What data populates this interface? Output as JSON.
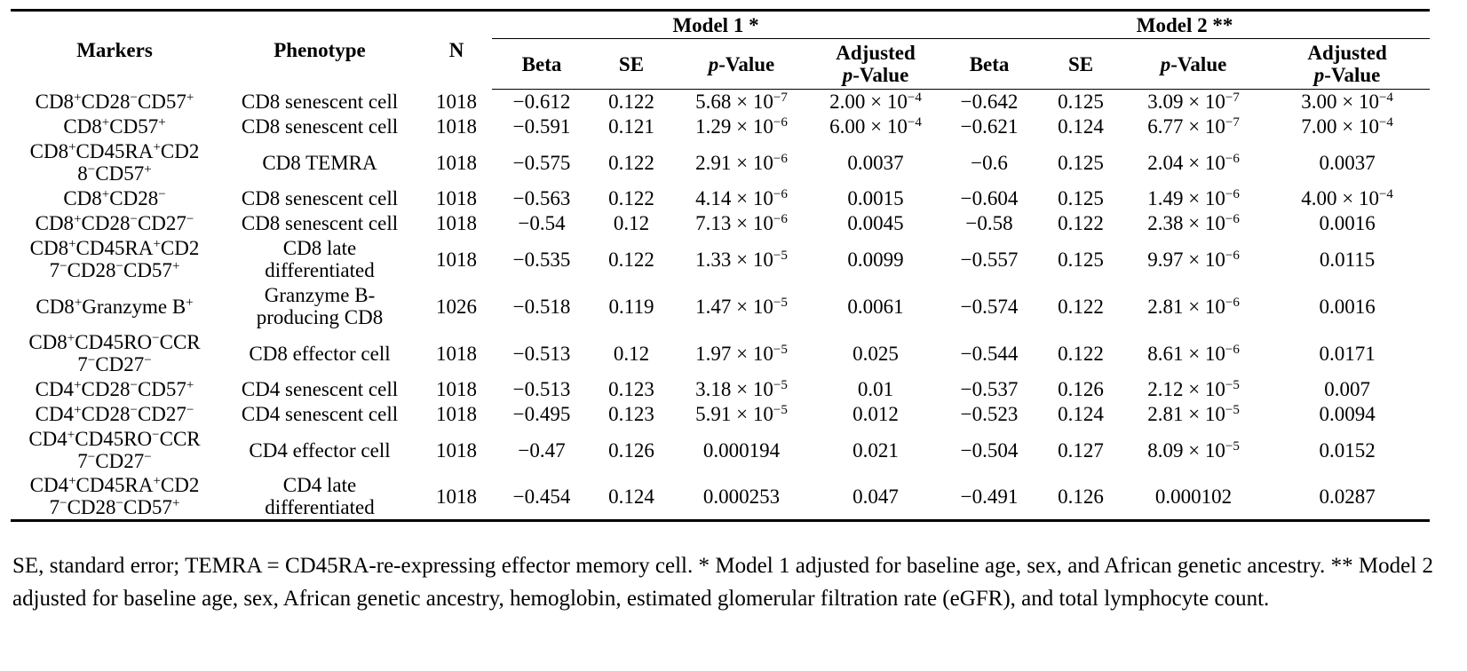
{
  "headers": {
    "markers": "Markers",
    "phenotype": "Phenotype",
    "n": "N",
    "model1": "Model 1 *",
    "model2": "Model 2 **",
    "beta": "Beta",
    "se": "SE",
    "p_italic": "p",
    "p_rest": "-Value",
    "adjusted": "Adjusted"
  },
  "rows": [
    {
      "markers": "CD8<sup>+</sup>CD28<sup>−</sup>CD57<sup>+</sup>",
      "phenotype": "CD8 senescent cell",
      "n": "1018",
      "m1_beta": "−0.612",
      "m1_se": "0.122",
      "m1_p": "5.68 × 10<sup>−7</sup>",
      "m1_adj": "2.00 × 10<sup>−4</sup>",
      "m2_beta": "−0.642",
      "m2_se": "0.125",
      "m2_p": "3.09 × 10<sup>−7</sup>",
      "m2_adj": "3.00 × 10<sup>−4</sup>"
    },
    {
      "markers": "CD8<sup>+</sup>CD57<sup>+</sup>",
      "phenotype": "CD8 senescent cell",
      "n": "1018",
      "m1_beta": "−0.591",
      "m1_se": "0.121",
      "m1_p": "1.29 × 10<sup>−6</sup>",
      "m1_adj": "6.00 × 10<sup>−4</sup>",
      "m2_beta": "−0.621",
      "m2_se": "0.124",
      "m2_p": "6.77 × 10<sup>−7</sup>",
      "m2_adj": "7.00 × 10<sup>−4</sup>"
    },
    {
      "markers": "CD8<sup>+</sup>CD45RA<sup>+</sup>CD2<br>8<sup>−</sup>CD57<sup>+</sup>",
      "phenotype": "CD8 TEMRA",
      "n": "1018",
      "m1_beta": "−0.575",
      "m1_se": "0.122",
      "m1_p": "2.91 × 10<sup>−6</sup>",
      "m1_adj": "0.0037",
      "m2_beta": "−0.6",
      "m2_se": "0.125",
      "m2_p": "2.04 × 10<sup>−6</sup>",
      "m2_adj": "0.0037"
    },
    {
      "markers": "CD8<sup>+</sup>CD28<sup>−</sup>",
      "phenotype": "CD8 senescent cell",
      "n": "1018",
      "m1_beta": "−0.563",
      "m1_se": "0.122",
      "m1_p": "4.14 × 10<sup>−6</sup>",
      "m1_adj": "0.0015",
      "m2_beta": "−0.604",
      "m2_se": "0.125",
      "m2_p": "1.49 × 10<sup>−6</sup>",
      "m2_adj": "4.00 × 10<sup>−4</sup>"
    },
    {
      "markers": "CD8<sup>+</sup>CD28<sup>−</sup>CD27<sup>−</sup>",
      "phenotype": "CD8 senescent cell",
      "n": "1018",
      "m1_beta": "−0.54",
      "m1_se": "0.12",
      "m1_p": "7.13 × 10<sup>−6</sup>",
      "m1_adj": "0.0045",
      "m2_beta": "−0.58",
      "m2_se": "0.122",
      "m2_p": "2.38 × 10<sup>−6</sup>",
      "m2_adj": "0.0016"
    },
    {
      "markers": "CD8<sup>+</sup>CD45RA<sup>+</sup>CD2<br>7<sup>−</sup>CD28<sup>−</sup>CD57<sup>+</sup>",
      "phenotype": "CD8 late<br>differentiated",
      "n": "1018",
      "m1_beta": "−0.535",
      "m1_se": "0.122",
      "m1_p": "1.33 × 10<sup>−5</sup>",
      "m1_adj": "0.0099",
      "m2_beta": "−0.557",
      "m2_se": "0.125",
      "m2_p": "9.97 × 10<sup>−6</sup>",
      "m2_adj": "0.0115"
    },
    {
      "markers": "CD8<sup>+</sup>Granzyme B<sup>+</sup>",
      "phenotype": "Granzyme B-<br>producing CD8",
      "n": "1026",
      "m1_beta": "−0.518",
      "m1_se": "0.119",
      "m1_p": "1.47 × 10<sup>−5</sup>",
      "m1_adj": "0.0061",
      "m2_beta": "−0.574",
      "m2_se": "0.122",
      "m2_p": "2.81 × 10<sup>−6</sup>",
      "m2_adj": "0.0016"
    },
    {
      "markers": "CD8<sup>+</sup>CD45RO<sup>−</sup>CCR<br>7<sup>−</sup>CD27<sup>−</sup>",
      "phenotype": "CD8 effector cell",
      "n": "1018",
      "m1_beta": "−0.513",
      "m1_se": "0.12",
      "m1_p": "1.97 × 10<sup>−5</sup>",
      "m1_adj": "0.025",
      "m2_beta": "−0.544",
      "m2_se": "0.122",
      "m2_p": "8.61 × 10<sup>−6</sup>",
      "m2_adj": "0.0171"
    },
    {
      "markers": "CD4<sup>+</sup>CD28<sup>−</sup>CD57<sup>+</sup>",
      "phenotype": "CD4 senescent cell",
      "n": "1018",
      "m1_beta": "−0.513",
      "m1_se": "0.123",
      "m1_p": "3.18 × 10<sup>−5</sup>",
      "m1_adj": "0.01",
      "m2_beta": "−0.537",
      "m2_se": "0.126",
      "m2_p": "2.12 × 10<sup>−5</sup>",
      "m2_adj": "0.007"
    },
    {
      "markers": "CD4<sup>+</sup>CD28<sup>−</sup>CD27<sup>−</sup>",
      "phenotype": "CD4 senescent cell",
      "n": "1018",
      "m1_beta": "−0.495",
      "m1_se": "0.123",
      "m1_p": "5.91 × 10<sup>−5</sup>",
      "m1_adj": "0.012",
      "m2_beta": "−0.523",
      "m2_se": "0.124",
      "m2_p": "2.81 × 10<sup>−5</sup>",
      "m2_adj": "0.0094"
    },
    {
      "markers": "CD4<sup>+</sup>CD45RO<sup>−</sup>CCR<br>7<sup>−</sup>CD27<sup>−</sup>",
      "phenotype": "CD4 effector cell",
      "n": "1018",
      "m1_beta": "−0.47",
      "m1_se": "0.126",
      "m1_p": "0.000194",
      "m1_adj": "0.021",
      "m2_beta": "−0.504",
      "m2_se": "0.127",
      "m2_p": "8.09 × 10<sup>−5</sup>",
      "m2_adj": "0.0152"
    },
    {
      "markers": "CD4<sup>+</sup>CD45RA<sup>+</sup>CD2<br>7<sup>−</sup>CD28<sup>−</sup>CD57<sup>+</sup>",
      "phenotype": "CD4 late<br>differentiated",
      "n": "1018",
      "m1_beta": "−0.454",
      "m1_se": "0.124",
      "m1_p": "0.000253",
      "m1_adj": "0.047",
      "m2_beta": "−0.491",
      "m2_se": "0.126",
      "m2_p": "0.000102",
      "m2_adj": "0.0287"
    }
  ],
  "footnote": "SE, standard error; TEMRA = CD45RA-re-expressing effector memory cell. * Model 1 adjusted for baseline age, sex, and African genetic ancestry. ** Model 2 adjusted for baseline age, sex, African genetic ancestry, hemoglobin, estimated glomerular filtration rate (eGFR), and total lymphocyte count."
}
